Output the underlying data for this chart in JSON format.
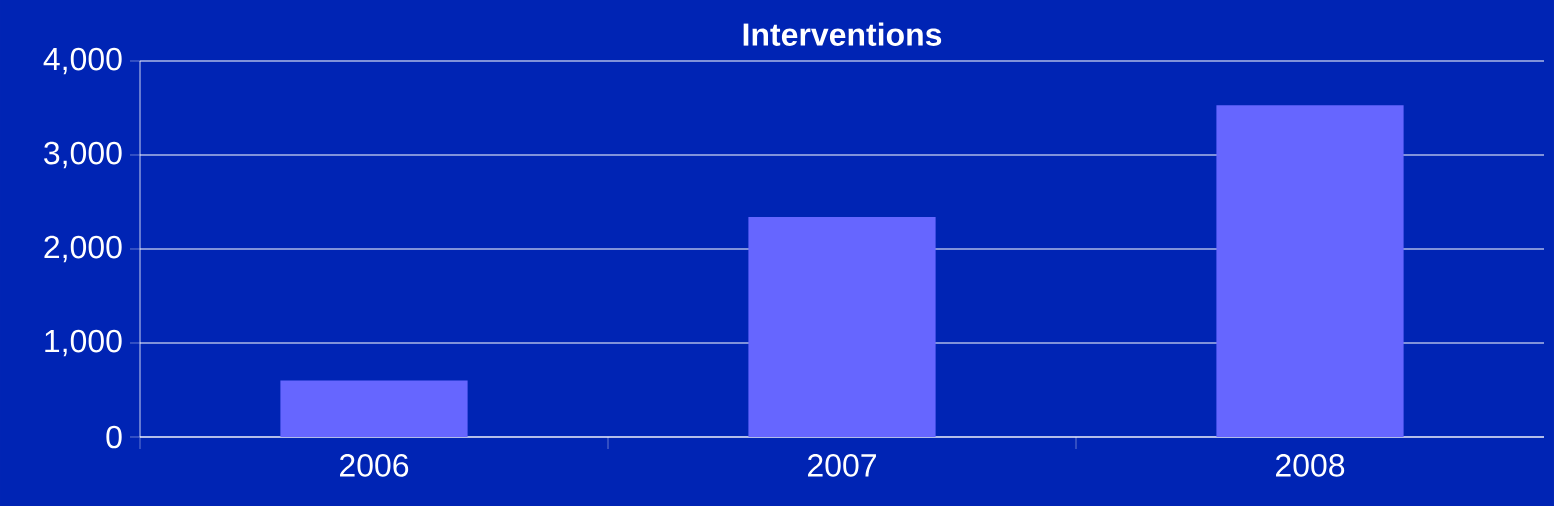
{
  "chart_data": {
    "type": "bar",
    "title": "Interventions",
    "categories": [
      "2006",
      "2007",
      "2008"
    ],
    "values": [
      600,
      2340,
      3530
    ],
    "color": "#6666ff",
    "ylim": [
      0,
      4000
    ],
    "yticks": [
      {
        "value": 0,
        "label": "0"
      },
      {
        "value": 1000,
        "label": "1,000"
      },
      {
        "value": 2000,
        "label": "2,000"
      },
      {
        "value": 3000,
        "label": "3,000"
      },
      {
        "value": 4000,
        "label": "4,000"
      }
    ],
    "grid": "y"
  }
}
